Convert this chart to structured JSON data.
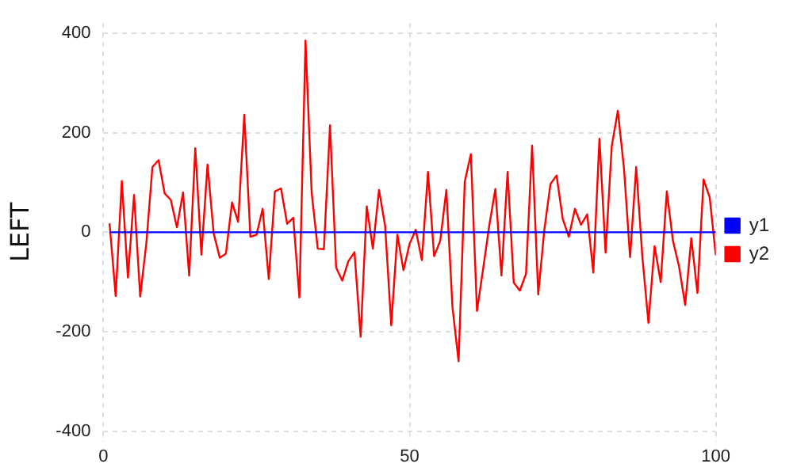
{
  "chart_data": {
    "type": "line",
    "ylabel": "LEFT",
    "x": [
      1,
      2,
      3,
      4,
      5,
      6,
      7,
      8,
      9,
      10,
      11,
      12,
      13,
      14,
      15,
      16,
      17,
      18,
      19,
      20,
      21,
      22,
      23,
      24,
      25,
      26,
      27,
      28,
      29,
      30,
      31,
      32,
      33,
      34,
      35,
      36,
      37,
      38,
      39,
      40,
      41,
      42,
      43,
      44,
      45,
      46,
      47,
      48,
      49,
      50,
      51,
      52,
      53,
      54,
      55,
      56,
      57,
      58,
      59,
      60,
      61,
      62,
      63,
      64,
      65,
      66,
      67,
      68,
      69,
      70,
      71,
      72,
      73,
      74,
      75,
      76,
      77,
      78,
      79,
      80,
      81,
      82,
      83,
      84,
      85,
      86,
      87,
      88,
      89,
      90,
      91,
      92,
      93,
      94,
      95,
      96,
      97,
      98,
      99,
      100
    ],
    "series": [
      {
        "name": "y1",
        "color": "#0000ff",
        "values": [
          0,
          0,
          0,
          0,
          0,
          0,
          0,
          0,
          0,
          0,
          0,
          0,
          0,
          0,
          0,
          0,
          0,
          0,
          0,
          0,
          0,
          0,
          0,
          0,
          0,
          0,
          0,
          0,
          0,
          0,
          0,
          0,
          0,
          0,
          0,
          0,
          0,
          0,
          0,
          0,
          0,
          0,
          0,
          0,
          0,
          0,
          0,
          0,
          0,
          0,
          0,
          0,
          0,
          0,
          0,
          0,
          0,
          0,
          0,
          0,
          0,
          0,
          0,
          0,
          0,
          0,
          0,
          0,
          0,
          0,
          0,
          0,
          0,
          0,
          0,
          0,
          0,
          0,
          0,
          0,
          0,
          0,
          0,
          0,
          0,
          0,
          0,
          0,
          0,
          0,
          0,
          0,
          0,
          0,
          0,
          0,
          0,
          0,
          0,
          0
        ]
      },
      {
        "name": "y2",
        "color": "#ff0000",
        "values": [
          18,
          -128,
          103,
          -91,
          75,
          -129,
          -23,
          131,
          145,
          78,
          65,
          10,
          80,
          -87,
          169,
          -45,
          136,
          -2,
          -51,
          -43,
          60,
          21,
          236,
          -9,
          -5,
          47,
          -94,
          82,
          88,
          17,
          29,
          -131,
          385,
          80,
          -33,
          -34,
          215,
          -71,
          -97,
          -58,
          -40,
          -210,
          52,
          -33,
          85,
          13,
          -187,
          -5,
          -76,
          -23,
          5,
          -56,
          121,
          -48,
          -17,
          85,
          -151,
          -259,
          101,
          157,
          -158,
          -74,
          13,
          87,
          -87,
          121,
          -101,
          -117,
          -84,
          174,
          -125,
          5,
          97,
          114,
          27,
          -9,
          47,
          15,
          36,
          -81,
          188,
          -41,
          172,
          244,
          129,
          -50,
          131,
          -48,
          -182,
          -28,
          -100,
          82,
          -17,
          -69,
          -146,
          -12,
          -122,
          106,
          70,
          -46
        ]
      }
    ],
    "xlim": [
      0,
      100
    ],
    "xticks": [
      0,
      50,
      100
    ],
    "ylim": [
      -420,
      420
    ],
    "yticks": [
      -400,
      -200,
      0,
      200,
      400
    ],
    "grid": true,
    "legend": "right",
    "marker": "none",
    "line_style": "solid"
  }
}
